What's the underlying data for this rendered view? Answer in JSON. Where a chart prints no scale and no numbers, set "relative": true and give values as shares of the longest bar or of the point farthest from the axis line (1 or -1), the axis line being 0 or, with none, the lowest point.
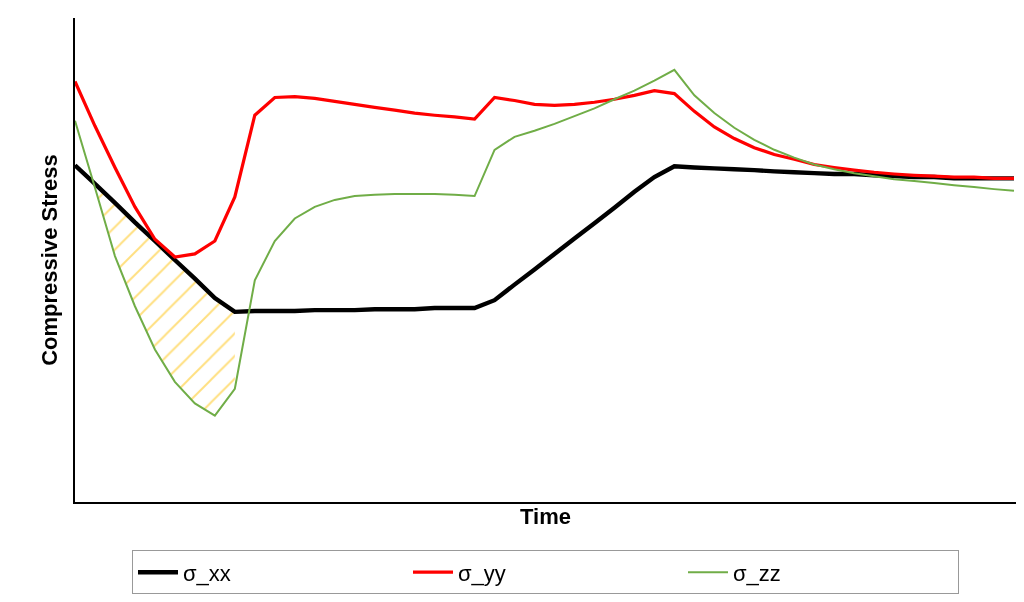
{
  "chart_data": {
    "type": "line",
    "xlabel": "Time",
    "ylabel": "Compressive Stress",
    "relative": true,
    "legend": "bottom",
    "marker": "none",
    "line_style": "solid",
    "tick_labels": false,
    "categories": [
      null,
      null,
      null,
      null,
      null,
      null,
      null,
      null,
      null,
      null,
      null,
      null,
      null,
      null,
      null,
      null,
      null,
      null,
      null,
      null,
      null,
      null,
      null,
      null,
      null,
      null,
      null,
      null,
      null,
      null,
      null,
      null,
      null,
      null,
      null,
      null,
      null,
      null,
      null,
      null,
      null,
      null,
      null,
      null,
      null,
      null,
      null,
      null
    ],
    "series": [
      {
        "name": "σ_xx",
        "color": "#000000",
        "values": [
          0.779,
          0.736,
          0.692,
          0.647,
          0.604,
          0.56,
          0.517,
          0.472,
          0.44,
          0.442,
          0.442,
          0.442,
          0.444,
          0.444,
          0.444,
          0.446,
          0.446,
          0.446,
          0.449,
          0.449,
          0.449,
          0.467,
          0.503,
          0.538,
          0.574,
          0.61,
          0.645,
          0.681,
          0.718,
          0.752,
          0.777,
          0.774,
          0.772,
          0.77,
          0.768,
          0.765,
          0.763,
          0.761,
          0.759,
          0.759,
          0.756,
          0.754,
          0.752,
          0.752,
          0.749,
          0.749,
          0.749,
          0.749
        ],
        "upper": [
          null,
          0.736,
          0.692,
          0.647,
          0.604,
          0.56,
          0.517,
          0.472,
          0.44,
          null,
          null,
          null,
          null,
          null,
          null,
          null,
          null,
          null,
          null,
          null,
          null,
          null,
          null,
          null,
          null,
          null,
          null,
          null,
          null,
          null,
          null,
          null,
          null,
          null,
          null,
          null,
          null,
          null,
          null,
          null,
          null,
          null,
          null,
          null,
          null,
          null,
          null,
          null
        ],
        "lower": [
          null,
          0.727,
          0.569,
          0.453,
          0.353,
          0.278,
          0.228,
          0.2,
          0.262,
          null,
          null,
          null,
          null,
          null,
          null,
          null,
          null,
          null,
          null,
          null,
          null,
          null,
          null,
          null,
          null,
          null,
          null,
          null,
          null,
          null,
          null,
          null,
          null,
          null,
          null,
          null,
          null,
          null,
          null,
          null,
          null,
          null,
          null,
          null,
          null,
          null,
          null,
          null
        ]
      },
      {
        "name": "σ_yy",
        "color": "#ff0000",
        "values": [
          0.973,
          0.87,
          0.774,
          0.683,
          0.608,
          0.567,
          0.574,
          0.604,
          0.706,
          0.895,
          0.936,
          0.938,
          0.934,
          0.927,
          0.92,
          0.913,
          0.907,
          0.9,
          0.895,
          0.891,
          0.886,
          0.936,
          0.929,
          0.92,
          0.918,
          0.92,
          0.925,
          0.932,
          0.941,
          0.952,
          0.945,
          0.904,
          0.868,
          0.841,
          0.82,
          0.804,
          0.793,
          0.781,
          0.774,
          0.768,
          0.763,
          0.759,
          0.756,
          0.754,
          0.752,
          0.752,
          0.749,
          0.749
        ]
      },
      {
        "name": "σ_zz",
        "color": "#70ad47",
        "values": [
          0.882,
          0.727,
          0.569,
          0.453,
          0.353,
          0.278,
          0.228,
          0.2,
          0.262,
          0.513,
          0.604,
          0.656,
          0.683,
          0.699,
          0.708,
          0.711,
          0.713,
          0.713,
          0.713,
          0.711,
          0.708,
          0.815,
          0.845,
          0.859,
          0.875,
          0.893,
          0.911,
          0.932,
          0.952,
          0.975,
          1,
          0.941,
          0.9,
          0.866,
          0.838,
          0.815,
          0.797,
          0.781,
          0.77,
          0.761,
          0.754,
          0.747,
          0.743,
          0.738,
          0.733,
          0.729,
          0.724,
          0.72
        ]
      }
    ]
  }
}
